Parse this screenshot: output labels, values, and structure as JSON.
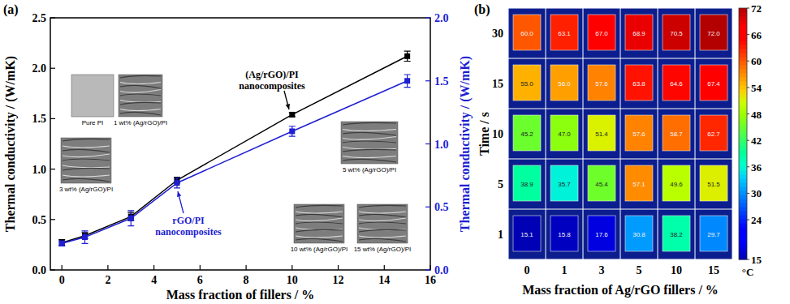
{
  "chart_data": [
    {
      "type": "line",
      "title": "(a)",
      "x_label": "Mass fraction of fillers / %",
      "y_label": "Thermal conductivity / (W/mK)",
      "y2_label": "Thermal conductivity / (W/mK)",
      "x": [
        0,
        1,
        3,
        5,
        10,
        15
      ],
      "xlim": [
        -0.5,
        16
      ],
      "xticks": [
        0,
        2,
        4,
        6,
        8,
        10,
        12,
        14,
        16
      ],
      "ylim": [
        0,
        2.5
      ],
      "yticks": [
        {
          "value": 0,
          "label": "0.0"
        },
        0.5,
        {
          "value": 1,
          "label": "1.0"
        },
        1.5,
        {
          "value": 2,
          "label": "2.0"
        },
        2.5
      ],
      "y2lim": [
        0,
        2
      ],
      "y2ticks": [
        {
          "value": 0,
          "label": "0.0"
        },
        0.5,
        {
          "value": 1,
          "label": "1.0"
        },
        1.5,
        {
          "value": 2,
          "label": "2.0"
        }
      ],
      "grid": false,
      "series": [
        {
          "name": "(Ag/rGO)/PI nanocomposites",
          "color": "#000000",
          "marker": "square",
          "values": [
            0.27,
            0.34,
            0.53,
            0.89,
            1.54,
            2.12
          ],
          "errors": [
            0.03,
            0.03,
            0.04,
            0.03,
            0.02,
            0.05
          ]
        },
        {
          "name": "rGO/PI nanocomposites",
          "color": "#1e1ed2",
          "marker": "square",
          "axis": "y2",
          "values": [
            0.21,
            0.26,
            0.41,
            0.69,
            1.1,
            1.5
          ],
          "errors": [
            0.02,
            0.05,
            0.06,
            0.04,
            0.04,
            0.05
          ]
        }
      ],
      "insets": [
        "Pure PI",
        "1 wt% (Ag/rGO)/PI",
        "3 wt% (Ag/rGO)/PI",
        "5 wt% (Ag/rGO)/PI",
        "10 wt% (Ag/rGO)/PI",
        "15 wt% (Ag/rGO)/PI"
      ]
    },
    {
      "type": "heatmap",
      "title": "(b)",
      "x_label": "Mass fraction of Ag/rGO fillers / %",
      "y_label": "Time / s",
      "categories": [
        "0",
        "1",
        "3",
        "5",
        "10",
        "15"
      ],
      "rows": [
        "30",
        "15",
        "10",
        "5",
        "1"
      ],
      "cells": [
        [
          60.0,
          63.1,
          67.0,
          68.9,
          70.5,
          72.0
        ],
        [
          55.0,
          56.0,
          57.6,
          63.8,
          64.6,
          67.4
        ],
        [
          45.2,
          47.0,
          51.4,
          57.6,
          58.7,
          62.7
        ],
        [
          38.9,
          35.7,
          45.4,
          57.1,
          49.6,
          51.5
        ],
        [
          15.1,
          15.8,
          17.6,
          30.8,
          38.2,
          29.7
        ]
      ],
      "cell_labels": [
        [
          "60.0",
          "63.1",
          "67.0",
          "68.9",
          "70.5",
          "72.0"
        ],
        [
          "55.0",
          "56.0",
          "57.6",
          "63.8",
          "64.6",
          "67.4"
        ],
        [
          "45.2",
          "47.0",
          "51.4",
          "57.6",
          "58.7",
          "62.7"
        ],
        [
          "38.9",
          "35.7",
          "45.4",
          "57.1",
          "49.6",
          "51.5"
        ],
        [
          "15.1",
          "15.8",
          "17.6",
          "30.8",
          "38.2",
          "29.7"
        ]
      ],
      "colorbar": {
        "label": "°C",
        "range": [
          15,
          72
        ],
        "ticks": [
          15,
          24,
          30,
          36,
          42,
          48,
          54,
          60,
          66,
          72
        ]
      }
    }
  ]
}
